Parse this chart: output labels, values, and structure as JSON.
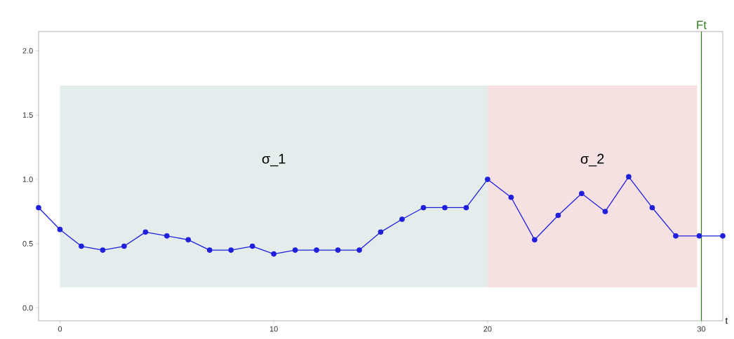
{
  "chart_data": {
    "type": "line",
    "xlabel": "t",
    "xlim": [
      -1,
      31
    ],
    "xticks": [
      0,
      10,
      20,
      30
    ],
    "ylim": [
      -0.1,
      2.15
    ],
    "yticks": [
      {
        "value": 0,
        "label": "0.0"
      },
      {
        "value": 0.5,
        "label": "0.5"
      },
      {
        "value": 1,
        "label": "1.0"
      },
      {
        "value": 1.5,
        "label": "1.5"
      },
      {
        "value": 2,
        "label": "2.0"
      }
    ],
    "marker": "circle",
    "line_style": "solid",
    "grid": false,
    "series": [
      {
        "color": "#1f1fdd",
        "x": [
          -1,
          0,
          1,
          2,
          3,
          4,
          5,
          6,
          7,
          8,
          9,
          10,
          11,
          12,
          13,
          14,
          15,
          16,
          17,
          18,
          19,
          20,
          21.1,
          22.2,
          23.3,
          24.4,
          25.5,
          26.6,
          27.7,
          28.8,
          29.9,
          31
        ],
        "values": [
          0.78,
          0.61,
          0.48,
          0.45,
          0.48,
          0.59,
          0.56,
          0.53,
          0.45,
          0.45,
          0.48,
          0.42,
          0.45,
          0.45,
          0.45,
          0.45,
          0.59,
          0.69,
          0.78,
          0.78,
          0.78,
          1.0,
          0.86,
          0.53,
          0.72,
          0.89,
          0.75,
          1.02,
          0.78,
          0.56,
          0.56,
          0.56
        ]
      }
    ],
    "bands": [
      {
        "axis": "x",
        "from": 0,
        "to": 20,
        "label": "σ_1",
        "color": "#e4ecec"
      },
      {
        "axis": "x",
        "from": 20,
        "to": 29.8,
        "label": "σ_2",
        "color": "#f5e1e2"
      }
    ],
    "ref_lines": [
      {
        "axis": "x",
        "value": 30,
        "label": "Ft",
        "color": "#2e7d1e",
        "line_style": "solid"
      }
    ]
  }
}
